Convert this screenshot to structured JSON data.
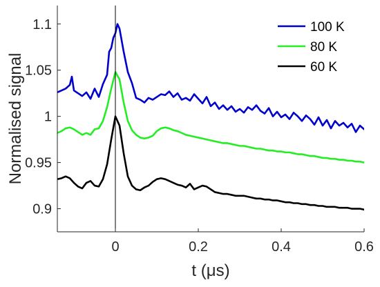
{
  "chart_data": {
    "type": "line",
    "title": "",
    "xlabel": "t (μs)",
    "ylabel": "Normalised signal",
    "xlim": [
      -0.14,
      0.6
    ],
    "ylim": [
      0.875,
      1.12
    ],
    "xticks": [
      0,
      0.2,
      0.4,
      0.6
    ],
    "xtick_labels": [
      "0",
      "0.2",
      "0.4",
      "0.6"
    ],
    "yticks": [
      0.9,
      0.95,
      1,
      1.05,
      1.1
    ],
    "ytick_labels": [
      "0.9",
      "0.95",
      "1",
      "1.05",
      "1.1"
    ],
    "grid": false,
    "legend_position": "top-right",
    "vertical_marker_x": 0,
    "series": [
      {
        "name": "100 K",
        "color": "#0000cc",
        "x": [
          -0.14,
          -0.13,
          -0.12,
          -0.11,
          -0.105,
          -0.1,
          -0.09,
          -0.08,
          -0.07,
          -0.06,
          -0.05,
          -0.04,
          -0.03,
          -0.02,
          -0.015,
          -0.01,
          -0.005,
          0,
          0.005,
          0.01,
          0.02,
          0.03,
          0.04,
          0.05,
          0.06,
          0.07,
          0.08,
          0.09,
          0.1,
          0.11,
          0.12,
          0.13,
          0.14,
          0.15,
          0.16,
          0.17,
          0.18,
          0.19,
          0.2,
          0.21,
          0.22,
          0.23,
          0.24,
          0.25,
          0.26,
          0.27,
          0.28,
          0.29,
          0.3,
          0.31,
          0.32,
          0.33,
          0.34,
          0.35,
          0.36,
          0.37,
          0.38,
          0.39,
          0.4,
          0.41,
          0.42,
          0.43,
          0.44,
          0.45,
          0.46,
          0.47,
          0.48,
          0.49,
          0.5,
          0.51,
          0.52,
          0.53,
          0.54,
          0.55,
          0.56,
          0.57,
          0.58,
          0.59,
          0.6
        ],
        "values": [
          1.026,
          1.028,
          1.03,
          1.034,
          1.043,
          1.028,
          1.025,
          1.022,
          1.026,
          1.019,
          1.03,
          1.021,
          1.035,
          1.045,
          1.07,
          1.074,
          1.085,
          1.09,
          1.1,
          1.095,
          1.07,
          1.048,
          1.036,
          1.02,
          1.018,
          1.015,
          1.02,
          1.018,
          1.021,
          1.024,
          1.023,
          1.027,
          1.021,
          1.025,
          1.018,
          1.02,
          1.017,
          1.024,
          1.019,
          1.014,
          1.021,
          1.011,
          1.015,
          1.008,
          1.012,
          1.007,
          1.011,
          1.005,
          1.008,
          1.004,
          1.01,
          1.007,
          1.012,
          1.006,
          1.003,
          1.009,
          1.0,
          1.005,
          0.999,
          1.002,
          0.997,
          1.004,
          1.0,
          0.995,
          1.001,
          0.997,
          0.991,
          0.999,
          0.99,
          0.996,
          0.987,
          0.995,
          0.99,
          0.993,
          0.988,
          0.992,
          0.983,
          0.99,
          0.986
        ]
      },
      {
        "name": "80 K",
        "color": "#22ee22",
        "x": [
          -0.14,
          -0.13,
          -0.12,
          -0.11,
          -0.1,
          -0.09,
          -0.08,
          -0.07,
          -0.06,
          -0.05,
          -0.04,
          -0.03,
          -0.02,
          -0.01,
          0,
          0.01,
          0.02,
          0.03,
          0.04,
          0.05,
          0.06,
          0.07,
          0.08,
          0.09,
          0.1,
          0.11,
          0.12,
          0.13,
          0.14,
          0.15,
          0.16,
          0.17,
          0.18,
          0.19,
          0.2,
          0.21,
          0.22,
          0.23,
          0.24,
          0.25,
          0.26,
          0.27,
          0.28,
          0.29,
          0.3,
          0.31,
          0.32,
          0.33,
          0.34,
          0.35,
          0.36,
          0.37,
          0.38,
          0.39,
          0.4,
          0.41,
          0.42,
          0.43,
          0.44,
          0.45,
          0.46,
          0.47,
          0.48,
          0.49,
          0.5,
          0.51,
          0.52,
          0.53,
          0.54,
          0.55,
          0.56,
          0.57,
          0.58,
          0.59,
          0.6
        ],
        "values": [
          0.982,
          0.984,
          0.987,
          0.988,
          0.986,
          0.983,
          0.98,
          0.982,
          0.98,
          0.986,
          0.987,
          0.995,
          1.01,
          1.03,
          1.048,
          1.04,
          1.015,
          0.995,
          0.985,
          0.98,
          0.977,
          0.976,
          0.977,
          0.979,
          0.984,
          0.987,
          0.988,
          0.987,
          0.985,
          0.984,
          0.982,
          0.98,
          0.979,
          0.978,
          0.977,
          0.976,
          0.975,
          0.974,
          0.973,
          0.972,
          0.971,
          0.971,
          0.97,
          0.969,
          0.968,
          0.968,
          0.967,
          0.966,
          0.965,
          0.965,
          0.964,
          0.963,
          0.963,
          0.962,
          0.962,
          0.961,
          0.961,
          0.96,
          0.959,
          0.959,
          0.958,
          0.957,
          0.957,
          0.956,
          0.955,
          0.955,
          0.954,
          0.954,
          0.953,
          0.953,
          0.952,
          0.952,
          0.951,
          0.951,
          0.95
        ]
      },
      {
        "name": "60 K",
        "color": "#000000",
        "x": [
          -0.14,
          -0.13,
          -0.12,
          -0.11,
          -0.1,
          -0.09,
          -0.08,
          -0.07,
          -0.06,
          -0.05,
          -0.04,
          -0.03,
          -0.02,
          -0.01,
          0,
          0.01,
          0.02,
          0.03,
          0.04,
          0.05,
          0.06,
          0.07,
          0.08,
          0.09,
          0.1,
          0.11,
          0.12,
          0.13,
          0.14,
          0.15,
          0.16,
          0.17,
          0.18,
          0.19,
          0.2,
          0.21,
          0.22,
          0.23,
          0.24,
          0.25,
          0.26,
          0.27,
          0.28,
          0.29,
          0.3,
          0.31,
          0.32,
          0.33,
          0.34,
          0.35,
          0.36,
          0.37,
          0.38,
          0.39,
          0.4,
          0.41,
          0.42,
          0.43,
          0.44,
          0.45,
          0.46,
          0.47,
          0.48,
          0.49,
          0.5,
          0.51,
          0.52,
          0.53,
          0.54,
          0.55,
          0.56,
          0.57,
          0.58,
          0.59,
          0.6
        ],
        "values": [
          0.932,
          0.933,
          0.935,
          0.933,
          0.928,
          0.924,
          0.922,
          0.928,
          0.93,
          0.925,
          0.924,
          0.932,
          0.948,
          0.975,
          1.0,
          0.99,
          0.96,
          0.935,
          0.925,
          0.921,
          0.92,
          0.923,
          0.925,
          0.929,
          0.932,
          0.933,
          0.932,
          0.93,
          0.928,
          0.926,
          0.925,
          0.923,
          0.927,
          0.921,
          0.923,
          0.925,
          0.924,
          0.921,
          0.918,
          0.917,
          0.916,
          0.916,
          0.915,
          0.914,
          0.914,
          0.914,
          0.913,
          0.912,
          0.911,
          0.911,
          0.91,
          0.91,
          0.909,
          0.909,
          0.908,
          0.907,
          0.907,
          0.906,
          0.906,
          0.905,
          0.905,
          0.904,
          0.904,
          0.903,
          0.903,
          0.902,
          0.902,
          0.902,
          0.901,
          0.901,
          0.901,
          0.9,
          0.9,
          0.9,
          0.899
        ]
      }
    ]
  }
}
